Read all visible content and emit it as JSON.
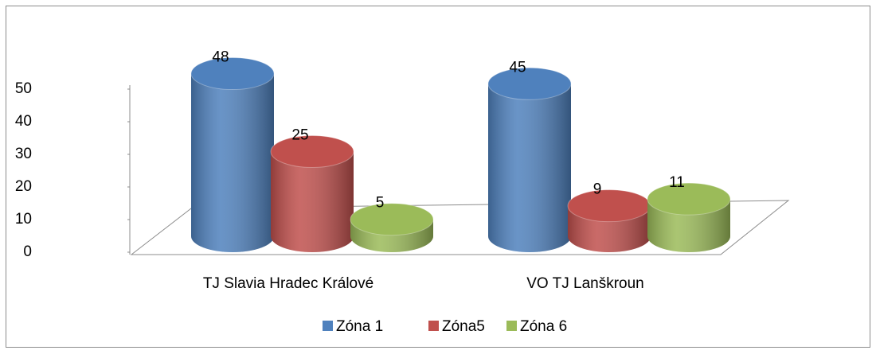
{
  "chart_data": {
    "type": "bar3d",
    "categories": [
      "TJ Slavia Hradec Králové",
      "VO TJ Lanškroun"
    ],
    "series": [
      {
        "name": "Zóna 1",
        "color": "#4f81bd",
        "values": [
          48,
          45
        ]
      },
      {
        "name": "Zóna5",
        "color": "#c0504d",
        "values": [
          25,
          9
        ]
      },
      {
        "name": "Zóna 6",
        "color": "#9bbb59",
        "values": [
          5,
          11
        ]
      }
    ],
    "ylim": [
      0,
      50
    ],
    "yticks": [
      0,
      10,
      20,
      30,
      40,
      50
    ],
    "legend": "bottom"
  }
}
